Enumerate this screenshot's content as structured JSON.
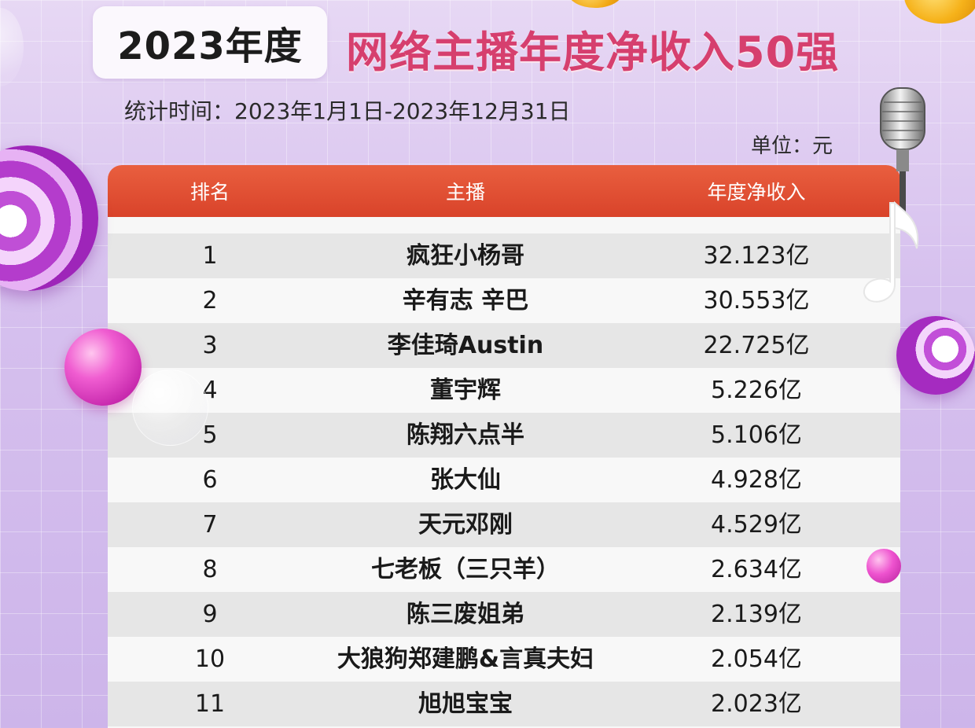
{
  "header": {
    "year_label": "2023年度",
    "main_title": "网络主播年度净收入50强",
    "stat_period": "统计时间：2023年1月1日-2023年12月31日",
    "unit": "单位：元"
  },
  "table": {
    "columns": {
      "rank": "排名",
      "name": "主播",
      "income": "年度净收入"
    },
    "rows": [
      {
        "rank": "1",
        "name": "疯狂小杨哥",
        "income": "32.123亿"
      },
      {
        "rank": "2",
        "name": "辛有志 辛巴",
        "income": "30.553亿"
      },
      {
        "rank": "3",
        "name": "李佳琦Austin",
        "income": "22.725亿"
      },
      {
        "rank": "4",
        "name": "董宇辉",
        "income": "5.226亿"
      },
      {
        "rank": "5",
        "name": "陈翔六点半",
        "income": "5.106亿"
      },
      {
        "rank": "6",
        "name": "张大仙",
        "income": "4.928亿"
      },
      {
        "rank": "7",
        "name": "天元邓刚",
        "income": "4.529亿"
      },
      {
        "rank": "8",
        "name": "七老板（三只羊）",
        "income": "2.634亿"
      },
      {
        "rank": "9",
        "name": "陈三废姐弟",
        "income": "2.139亿"
      },
      {
        "rank": "10",
        "name": "大狼狗郑建鹏&言真夫妇",
        "income": "2.054亿"
      },
      {
        "rank": "11",
        "name": "旭旭宝宝",
        "income": "2.023亿"
      }
    ]
  },
  "colors": {
    "title_pink": "#d63f6e",
    "header_red": "#e0492f",
    "background_lavender": "#dcc8ef"
  },
  "icons": [
    "microphone-icon",
    "music-note-icon",
    "striped-ball-icon",
    "pink-ball-icon",
    "coin-icon",
    "bubble-icon"
  ]
}
